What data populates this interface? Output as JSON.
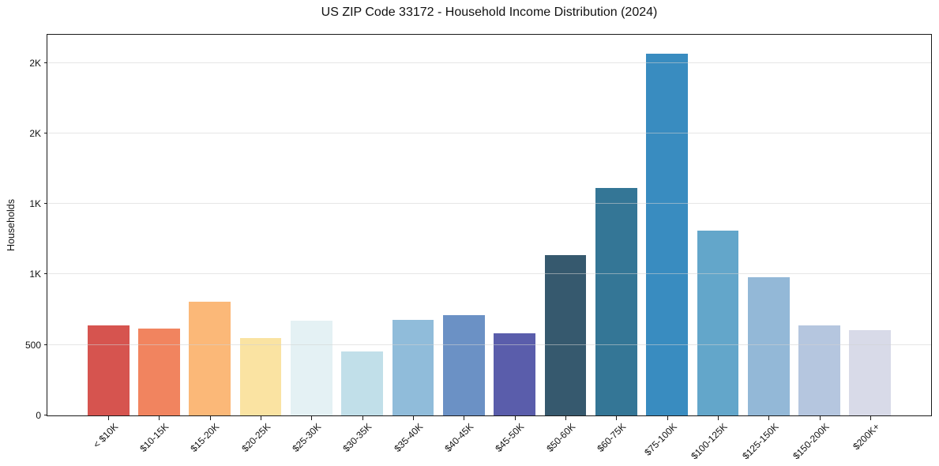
{
  "chart_data": {
    "type": "bar",
    "title": "US ZIP Code 33172 - Household Income Distribution (2024)",
    "xlabel": "",
    "ylabel": "Households",
    "categories": [
      "< $10K",
      "$10-15K",
      "$15-20K",
      "$20-25K",
      "$25-30K",
      "$30-35K",
      "$35-40K",
      "$40-45K",
      "$45-50K",
      "$50-60K",
      "$60-75K",
      "$75-100K",
      "$100-125K",
      "$125-150K",
      "$150-200K",
      "$200K+"
    ],
    "values": [
      640,
      615,
      805,
      550,
      670,
      455,
      680,
      710,
      580,
      1135,
      1615,
      2565,
      1310,
      980,
      640,
      605
    ],
    "bar_colors": [
      "#d6544f",
      "#f1845f",
      "#fbb878",
      "#fae3a2",
      "#e4f1f4",
      "#c1dfe9",
      "#90bcda",
      "#6b91c5",
      "#5a5dab",
      "#36596e",
      "#347696",
      "#398cc0",
      "#63a6ca",
      "#93b8d7",
      "#b5c6df",
      "#d8dae8"
    ],
    "ylim": [
      0,
      2700
    ],
    "yticks": [
      {
        "value": 0,
        "label": "0"
      },
      {
        "value": 500,
        "label": "500"
      },
      {
        "value": 1000,
        "label": "1K"
      },
      {
        "value": 1500,
        "label": "1K"
      },
      {
        "value": 2000,
        "label": "2K"
      },
      {
        "value": 2500,
        "label": "2K"
      }
    ],
    "grid": true,
    "legend": "none",
    "x_tick_rotation_deg": 45,
    "background_color": "#ffffff",
    "spine_color": "#1a1a1a",
    "gridline_color": "#e6e6e6"
  }
}
